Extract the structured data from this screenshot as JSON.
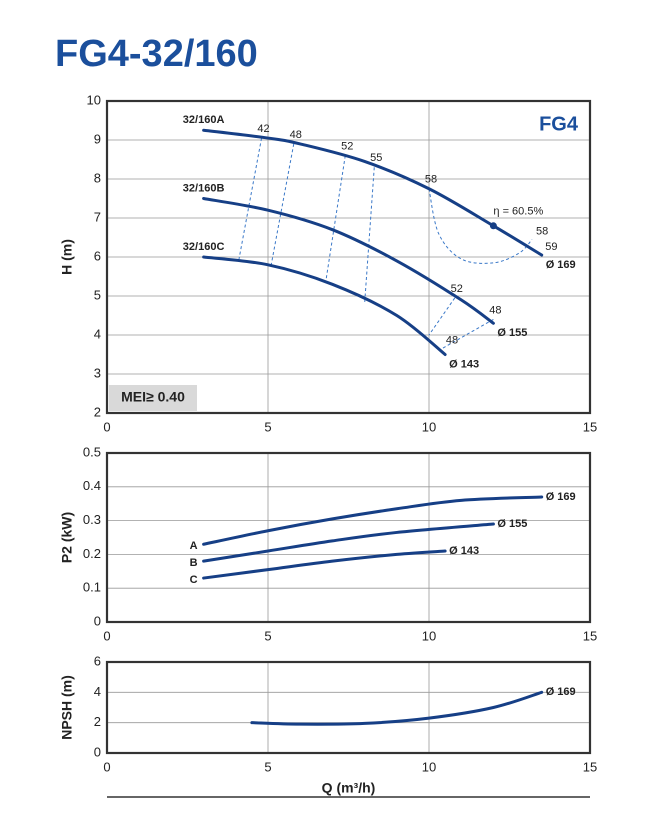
{
  "chart_data": [
    {
      "type": "line",
      "title": "FG4-32/160",
      "badge": "FG4",
      "note": "MEI≥ 0.40",
      "ylabel": "H (m)",
      "xlim": [
        0,
        15
      ],
      "xticks": [
        0,
        5,
        10,
        15
      ],
      "ylim": [
        2,
        10
      ],
      "yticks": [
        2,
        3,
        4,
        5,
        6,
        7,
        8,
        9,
        10
      ],
      "grid": true,
      "color": "#163f86",
      "series": [
        {
          "name": "32/160A",
          "end_label": "Ø 169",
          "x": [
            3,
            5,
            6,
            8,
            10,
            12,
            13.5
          ],
          "values": [
            9.25,
            9.05,
            8.9,
            8.45,
            7.75,
            6.8,
            6.05
          ]
        },
        {
          "name": "32/160B",
          "end_label": "Ø 155",
          "x": [
            3,
            5,
            7,
            9,
            11,
            12
          ],
          "values": [
            7.5,
            7.2,
            6.7,
            5.9,
            4.9,
            4.3
          ]
        },
        {
          "name": "32/160C",
          "end_label": "Ø 143",
          "x": [
            3,
            5,
            7,
            9,
            10.5
          ],
          "values": [
            6.0,
            5.8,
            5.3,
            4.5,
            3.5
          ]
        }
      ],
      "efficiency": [
        {
          "label": "42",
          "x": [
            4.8,
            4.1
          ],
          "y": [
            9.05,
            5.95
          ]
        },
        {
          "label": "48",
          "x": [
            5.8,
            5.1
          ],
          "y": [
            8.9,
            5.8
          ]
        },
        {
          "label": "52",
          "x": [
            7.4,
            6.8
          ],
          "y": [
            8.6,
            5.4
          ]
        },
        {
          "label": "55",
          "x": [
            8.3,
            8.0
          ],
          "y": [
            8.3,
            4.8
          ]
        },
        {
          "label": "58",
          "end_label": "58",
          "x": [
            10,
            10.3,
            11,
            12,
            12.8,
            13.2
          ],
          "y": [
            7.75,
            6.6,
            5.95,
            5.85,
            6.1,
            6.45
          ]
        },
        {
          "label": "52",
          "x": [
            10.8,
            10.0
          ],
          "y": [
            4.95,
            4.0
          ]
        },
        {
          "label": "48",
          "end_label": "48",
          "x": [
            12.0,
            10.4
          ],
          "y": [
            4.4,
            3.65
          ]
        }
      ],
      "best_point": {
        "x": 12,
        "y": 6.8,
        "label": "η = 60.5%"
      },
      "annotations": [
        {
          "text": "59",
          "x": 13.8,
          "y": 6.25
        }
      ]
    },
    {
      "type": "line",
      "ylabel": "P2 (kW)",
      "xlim": [
        0,
        15
      ],
      "xticks": [
        0,
        5,
        10,
        15
      ],
      "ylim": [
        0,
        0.5
      ],
      "yticks": [
        0,
        0.1,
        0.2,
        0.3,
        0.4,
        0.5
      ],
      "grid": true,
      "color": "#163f86",
      "series": [
        {
          "name": "A",
          "end_label": "Ø 169",
          "x": [
            3,
            5,
            7,
            9,
            11,
            13.5
          ],
          "values": [
            0.23,
            0.27,
            0.305,
            0.335,
            0.36,
            0.37
          ]
        },
        {
          "name": "B",
          "end_label": "Ø 155",
          "x": [
            3,
            5,
            7,
            9,
            12
          ],
          "values": [
            0.18,
            0.21,
            0.24,
            0.265,
            0.29
          ]
        },
        {
          "name": "C",
          "end_label": "Ø 143",
          "x": [
            3,
            5,
            7,
            9,
            10.5
          ],
          "values": [
            0.13,
            0.155,
            0.18,
            0.2,
            0.21
          ]
        }
      ]
    },
    {
      "type": "line",
      "ylabel": "NPSH (m)",
      "xlabel": "Q (m³/h)",
      "xlim": [
        0,
        15
      ],
      "xticks": [
        0,
        5,
        10,
        15
      ],
      "ylim": [
        0,
        6
      ],
      "yticks": [
        0,
        2,
        4,
        6
      ],
      "grid": true,
      "color": "#163f86",
      "series": [
        {
          "end_label": "Ø 169",
          "x": [
            4.5,
            6,
            8,
            10,
            12,
            13.5
          ],
          "values": [
            2.0,
            1.9,
            1.95,
            2.3,
            3.0,
            4.0
          ]
        }
      ]
    }
  ]
}
